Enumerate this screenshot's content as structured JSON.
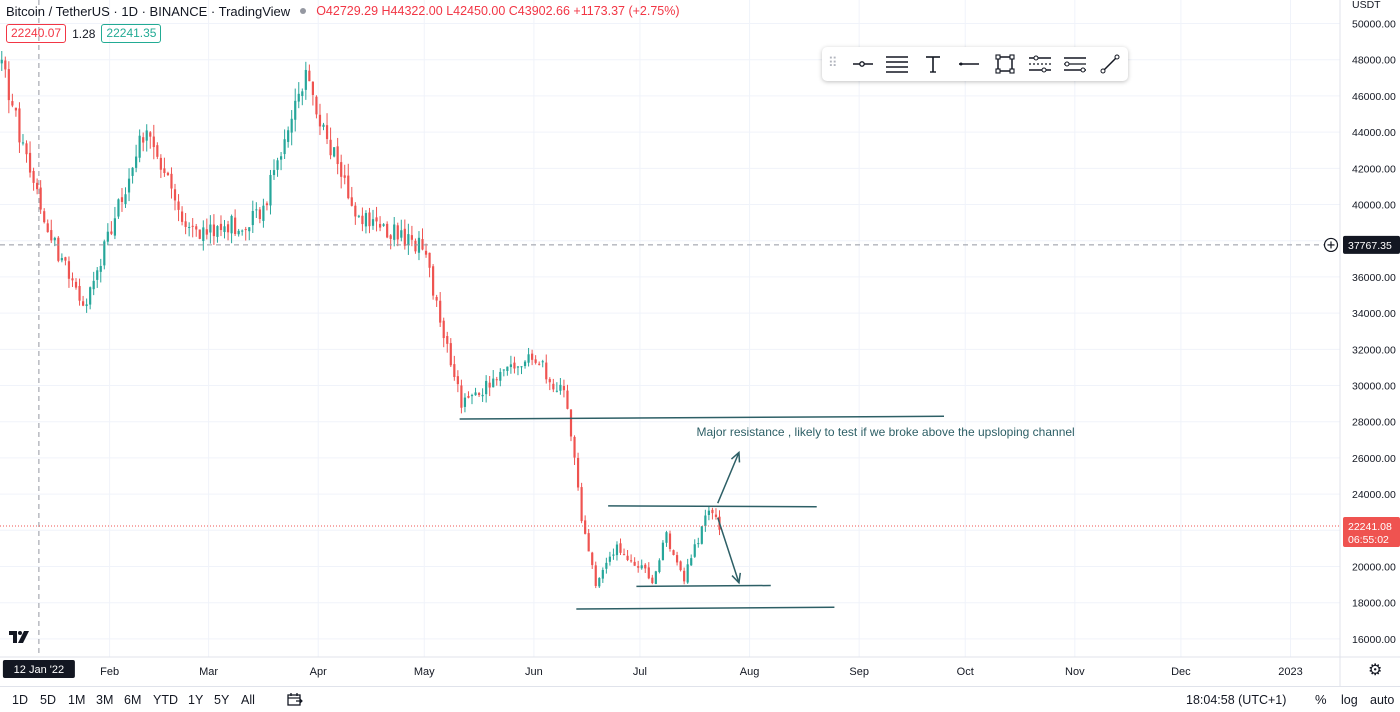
{
  "legend": {
    "symbol": "Bitcoin / TetherUS · 1D · BINANCE · TradingView",
    "open": "O42729.29",
    "high": "H44322.00",
    "low": "L42450.00",
    "close": "C43902.66",
    "change": "+1173.37 (+2.75%)",
    "bid": "22240.07",
    "spread": "1.28",
    "ask": "22241.35"
  },
  "currency": "USDT",
  "toolbar": {
    "icons": [
      "grip-icon",
      "horizontal-ray-icon",
      "parallel-lines-icon",
      "text-icon",
      "horizontal-line-icon",
      "rectangle-icon",
      "channel-icon",
      "disjoint-channel-icon",
      "trend-line-icon"
    ]
  },
  "chart_data": {
    "type": "candlestick",
    "symbol": "Bitcoin / TetherUS",
    "interval": "1D",
    "exchange": "BINANCE",
    "y_ticks": [
      16000,
      18000,
      20000,
      22000,
      24000,
      26000,
      28000,
      30000,
      32000,
      34000,
      36000,
      38000,
      40000,
      42000,
      44000,
      46000,
      48000,
      50000
    ],
    "y_tick_labels": [
      "16000.00",
      "18000.00",
      "20000.00",
      "22000.00",
      "24000.00",
      "26000.00",
      "28000.00",
      "30000.00",
      "32000.00",
      "34000.00",
      "36000.00",
      "38000.00",
      "40000.00",
      "42000.00",
      "44000.00",
      "46000.00",
      "48000.00",
      "50000.00"
    ],
    "ylim": [
      15000,
      51300
    ],
    "x_range": [
      "2022-01-01",
      "2023-01-15"
    ],
    "x_labels": [
      {
        "date": "2022-02-01",
        "label": "Feb"
      },
      {
        "date": "2022-03-01",
        "label": "Mar"
      },
      {
        "date": "2022-04-01",
        "label": "Apr"
      },
      {
        "date": "2022-05-01",
        "label": "May"
      },
      {
        "date": "2022-06-01",
        "label": "Jun"
      },
      {
        "date": "2022-07-01",
        "label": "Jul"
      },
      {
        "date": "2022-08-01",
        "label": "Aug"
      },
      {
        "date": "2022-09-01",
        "label": "Sep"
      },
      {
        "date": "2022-10-01",
        "label": "Oct"
      },
      {
        "date": "2022-11-01",
        "label": "Nov"
      },
      {
        "date": "2022-12-01",
        "label": "Dec"
      },
      {
        "date": "2023-01-01",
        "label": "2023"
      }
    ],
    "crosshair": {
      "date": "2022-01-12",
      "date_label": "12 Jan '22",
      "price": 37767.35,
      "price_label": "37767.35"
    },
    "last_price": {
      "price": 22241.08,
      "price_label": "22241.08",
      "countdown": "06:55:02"
    },
    "key_closes": [
      {
        "date": "2022-01-01",
        "close": 47800
      },
      {
        "date": "2022-01-10",
        "close": 40800
      },
      {
        "date": "2022-01-22",
        "close": 35000
      },
      {
        "date": "2022-01-24",
        "close": 34000
      },
      {
        "date": "2022-02-10",
        "close": 44000
      },
      {
        "date": "2022-02-24",
        "close": 38300
      },
      {
        "date": "2022-03-15",
        "close": 39300
      },
      {
        "date": "2022-03-28",
        "close": 47100
      },
      {
        "date": "2022-04-11",
        "close": 39500
      },
      {
        "date": "2022-04-30",
        "close": 37700
      },
      {
        "date": "2022-05-11",
        "close": 29000
      },
      {
        "date": "2022-05-31",
        "close": 31800
      },
      {
        "date": "2022-06-10",
        "close": 29100
      },
      {
        "date": "2022-06-14",
        "close": 22500
      },
      {
        "date": "2022-06-18",
        "close": 19000
      },
      {
        "date": "2022-06-24",
        "close": 21200
      },
      {
        "date": "2022-07-04",
        "close": 19300
      },
      {
        "date": "2022-07-08",
        "close": 21600
      },
      {
        "date": "2022-07-13",
        "close": 19400
      },
      {
        "date": "2022-07-20",
        "close": 23200
      },
      {
        "date": "2022-07-23",
        "close": 22240
      }
    ],
    "drawings": {
      "lines": [
        {
          "from": [
            "2022-05-11",
            28150
          ],
          "to": [
            "2022-09-25",
            28300
          ]
        },
        {
          "from": [
            "2022-06-22",
            23350
          ],
          "to": [
            "2022-08-20",
            23300
          ]
        },
        {
          "from": [
            "2022-06-30",
            18900
          ],
          "to": [
            "2022-08-07",
            18950
          ]
        },
        {
          "from": [
            "2022-06-13",
            17650
          ],
          "to": [
            "2022-08-25",
            17750
          ]
        }
      ],
      "arrows": [
        {
          "from": [
            "2022-07-23",
            23500
          ],
          "to": [
            "2022-07-29",
            26300
          ]
        },
        {
          "from": [
            "2022-07-23",
            22700
          ],
          "to": [
            "2022-07-29",
            19100
          ]
        }
      ],
      "annotation": {
        "date": "2022-07-17",
        "price": 27200,
        "text": "Major resistance , likely to test if we broke above the upsloping channel"
      }
    }
  },
  "bottom": {
    "ranges": [
      "1D",
      "5D",
      "1M",
      "3M",
      "6M",
      "YTD",
      "1Y",
      "5Y",
      "All"
    ],
    "clock": "18:04:58 (UTC+1)",
    "percent": "%",
    "log": "log",
    "auto": "auto"
  }
}
